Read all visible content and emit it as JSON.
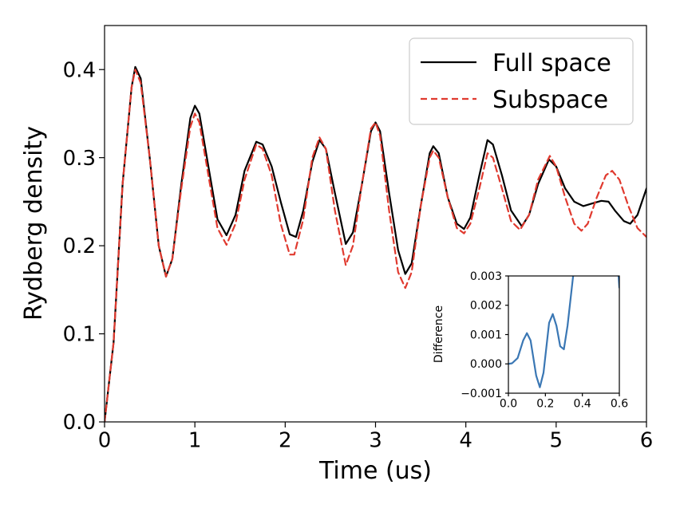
{
  "chart_data": [
    {
      "type": "line",
      "xlabel": "Time (us)",
      "ylabel": "Rydberg density",
      "xlim": [
        0,
        6
      ],
      "ylim": [
        0,
        0.45
      ],
      "xticks": [
        "0",
        "1",
        "2",
        "3",
        "4",
        "5",
        "6"
      ],
      "yticks": [
        "0.0",
        "0.1",
        "0.2",
        "0.3",
        "0.4"
      ],
      "grid": false,
      "legend": "top-right",
      "series": [
        {
          "name": "Full space",
          "color": "#000000",
          "dash": "solid",
          "points": [
            [
              0,
              0
            ],
            [
              0.1,
              0.09
            ],
            [
              0.2,
              0.27
            ],
            [
              0.3,
              0.38
            ],
            [
              0.34,
              0.403
            ],
            [
              0.4,
              0.39
            ],
            [
              0.5,
              0.3
            ],
            [
              0.6,
              0.2
            ],
            [
              0.68,
              0.165
            ],
            [
              0.75,
              0.185
            ],
            [
              0.85,
              0.27
            ],
            [
              0.95,
              0.345
            ],
            [
              1.0,
              0.359
            ],
            [
              1.05,
              0.35
            ],
            [
              1.15,
              0.29
            ],
            [
              1.25,
              0.23
            ],
            [
              1.35,
              0.212
            ],
            [
              1.45,
              0.235
            ],
            [
              1.55,
              0.285
            ],
            [
              1.68,
              0.318
            ],
            [
              1.75,
              0.315
            ],
            [
              1.85,
              0.29
            ],
            [
              1.95,
              0.25
            ],
            [
              2.05,
              0.213
            ],
            [
              2.12,
              0.21
            ],
            [
              2.2,
              0.24
            ],
            [
              2.3,
              0.295
            ],
            [
              2.38,
              0.32
            ],
            [
              2.45,
              0.31
            ],
            [
              2.55,
              0.26
            ],
            [
              2.67,
              0.202
            ],
            [
              2.75,
              0.215
            ],
            [
              2.85,
              0.27
            ],
            [
              2.95,
              0.33
            ],
            [
              3.0,
              0.34
            ],
            [
              3.05,
              0.33
            ],
            [
              3.15,
              0.26
            ],
            [
              3.25,
              0.195
            ],
            [
              3.33,
              0.168
            ],
            [
              3.4,
              0.18
            ],
            [
              3.5,
              0.245
            ],
            [
              3.6,
              0.305
            ],
            [
              3.64,
              0.313
            ],
            [
              3.7,
              0.305
            ],
            [
              3.8,
              0.255
            ],
            [
              3.9,
              0.225
            ],
            [
              3.98,
              0.219
            ],
            [
              4.05,
              0.232
            ],
            [
              4.15,
              0.28
            ],
            [
              4.24,
              0.32
            ],
            [
              4.3,
              0.315
            ],
            [
              4.4,
              0.28
            ],
            [
              4.5,
              0.24
            ],
            [
              4.62,
              0.222
            ],
            [
              4.7,
              0.235
            ],
            [
              4.8,
              0.27
            ],
            [
              4.92,
              0.298
            ],
            [
              5.0,
              0.29
            ],
            [
              5.1,
              0.265
            ],
            [
              5.2,
              0.25
            ],
            [
              5.3,
              0.245
            ],
            [
              5.4,
              0.248
            ],
            [
              5.5,
              0.251
            ],
            [
              5.58,
              0.25
            ],
            [
              5.65,
              0.24
            ],
            [
              5.75,
              0.228
            ],
            [
              5.82,
              0.225
            ],
            [
              5.9,
              0.235
            ],
            [
              6.0,
              0.265
            ]
          ]
        },
        {
          "name": "Subspace",
          "color": "#e03a2f",
          "dash": "dashed",
          "points": [
            [
              0,
              0
            ],
            [
              0.1,
              0.09
            ],
            [
              0.2,
              0.27
            ],
            [
              0.3,
              0.38
            ],
            [
              0.34,
              0.4
            ],
            [
              0.4,
              0.385
            ],
            [
              0.5,
              0.3
            ],
            [
              0.6,
              0.2
            ],
            [
              0.68,
              0.165
            ],
            [
              0.75,
              0.185
            ],
            [
              0.85,
              0.265
            ],
            [
              0.95,
              0.335
            ],
            [
              1.0,
              0.35
            ],
            [
              1.05,
              0.34
            ],
            [
              1.15,
              0.28
            ],
            [
              1.25,
              0.22
            ],
            [
              1.35,
              0.201
            ],
            [
              1.45,
              0.225
            ],
            [
              1.55,
              0.275
            ],
            [
              1.68,
              0.315
            ],
            [
              1.75,
              0.31
            ],
            [
              1.85,
              0.28
            ],
            [
              1.95,
              0.225
            ],
            [
              2.05,
              0.19
            ],
            [
              2.1,
              0.19
            ],
            [
              2.2,
              0.23
            ],
            [
              2.3,
              0.3
            ],
            [
              2.38,
              0.323
            ],
            [
              2.45,
              0.31
            ],
            [
              2.55,
              0.24
            ],
            [
              2.67,
              0.178
            ],
            [
              2.75,
              0.2
            ],
            [
              2.85,
              0.27
            ],
            [
              2.95,
              0.333
            ],
            [
              3.0,
              0.34
            ],
            [
              3.05,
              0.325
            ],
            [
              3.15,
              0.24
            ],
            [
              3.25,
              0.17
            ],
            [
              3.33,
              0.152
            ],
            [
              3.4,
              0.17
            ],
            [
              3.5,
              0.245
            ],
            [
              3.6,
              0.3
            ],
            [
              3.64,
              0.308
            ],
            [
              3.7,
              0.3
            ],
            [
              3.8,
              0.255
            ],
            [
              3.9,
              0.22
            ],
            [
              3.98,
              0.214
            ],
            [
              4.05,
              0.225
            ],
            [
              4.15,
              0.265
            ],
            [
              4.24,
              0.305
            ],
            [
              4.3,
              0.3
            ],
            [
              4.4,
              0.265
            ],
            [
              4.5,
              0.228
            ],
            [
              4.6,
              0.218
            ],
            [
              4.7,
              0.235
            ],
            [
              4.8,
              0.275
            ],
            [
              4.93,
              0.302
            ],
            [
              5.0,
              0.29
            ],
            [
              5.1,
              0.255
            ],
            [
              5.2,
              0.225
            ],
            [
              5.28,
              0.217
            ],
            [
              5.35,
              0.225
            ],
            [
              5.45,
              0.255
            ],
            [
              5.55,
              0.28
            ],
            [
              5.62,
              0.285
            ],
            [
              5.7,
              0.275
            ],
            [
              5.8,
              0.245
            ],
            [
              5.9,
              0.22
            ],
            [
              6.0,
              0.21
            ]
          ]
        }
      ]
    },
    {
      "type": "line",
      "xlabel": "",
      "ylabel": "Difference",
      "xlim": [
        0,
        0.6
      ],
      "ylim": [
        -0.001,
        0.003
      ],
      "xticks": [
        "0.0",
        "0.2",
        "0.4",
        "0.6"
      ],
      "yticks": [
        "−0.001",
        "0.000",
        "0.001",
        "0.002",
        "0.003"
      ],
      "grid": false,
      "series": [
        {
          "color": "#3a77b4",
          "dash": "solid",
          "points": [
            [
              0,
              0
            ],
            [
              0.02,
              2e-05
            ],
            [
              0.05,
              0.0002
            ],
            [
              0.08,
              0.0008
            ],
            [
              0.1,
              0.00105
            ],
            [
              0.12,
              0.0008
            ],
            [
              0.15,
              -0.0004
            ],
            [
              0.17,
              -0.0008
            ],
            [
              0.19,
              -0.0003
            ],
            [
              0.22,
              0.0014
            ],
            [
              0.24,
              0.0017
            ],
            [
              0.26,
              0.0013
            ],
            [
              0.28,
              0.0006
            ],
            [
              0.3,
              0.0005
            ],
            [
              0.32,
              0.0013
            ],
            [
              0.35,
              0.003
            ],
            [
              0.37,
              0.0045
            ],
            [
              0.58,
              0.0045
            ],
            [
              0.6,
              0.0026
            ]
          ]
        }
      ]
    }
  ]
}
